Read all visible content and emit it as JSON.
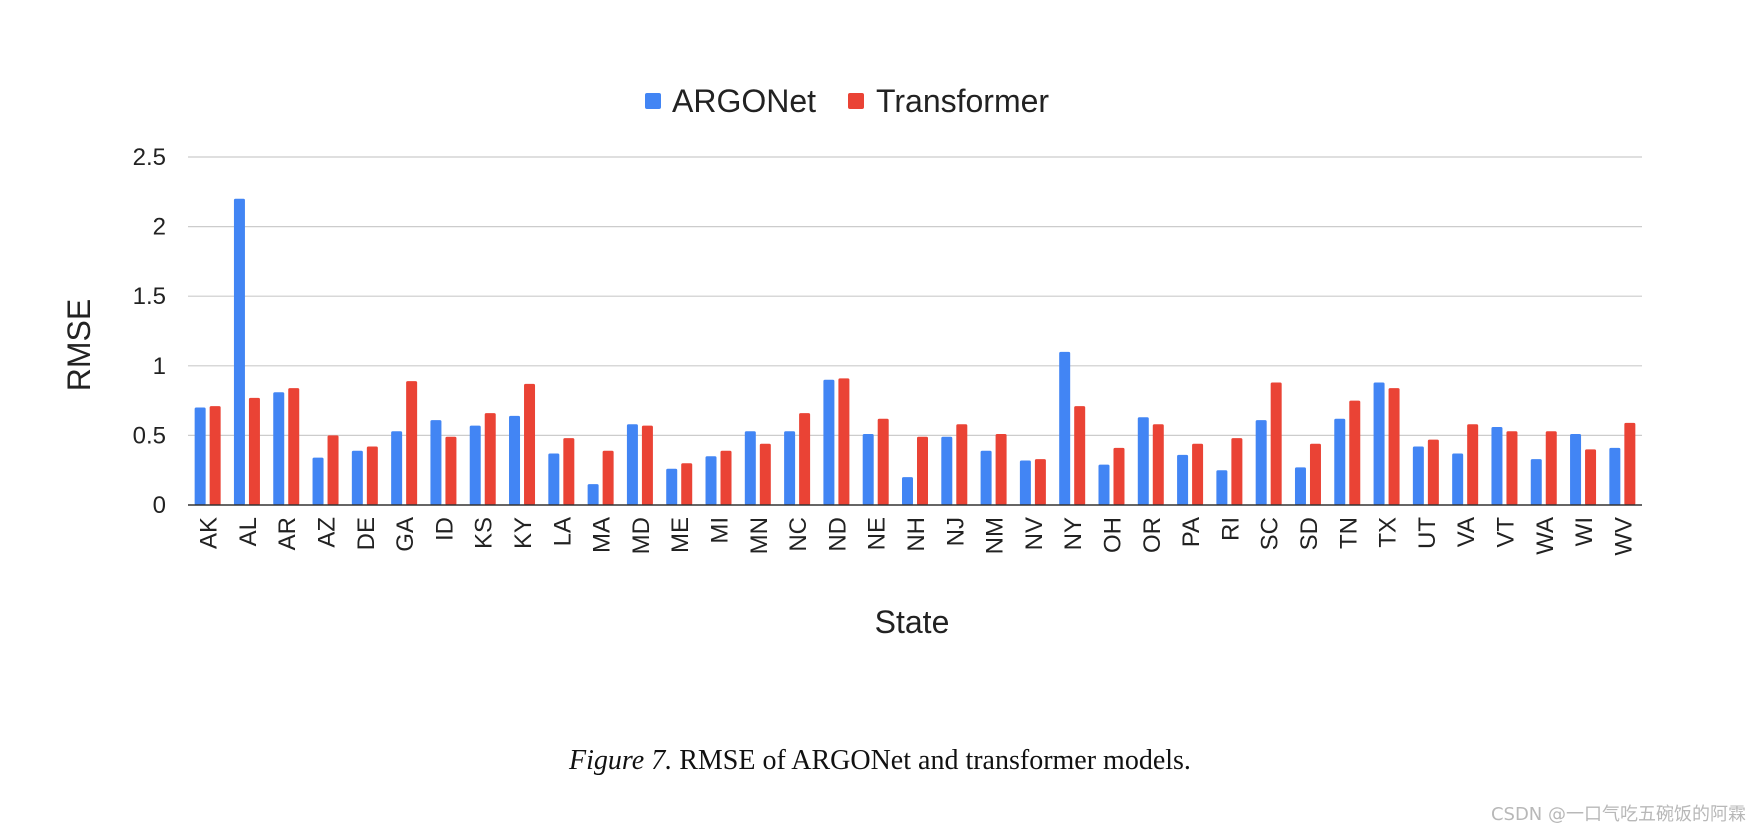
{
  "chart_data": {
    "type": "bar",
    "title": "",
    "xlabel": "State",
    "ylabel": "RMSE",
    "ylim": [
      0,
      2.5
    ],
    "yticks": [
      0,
      0.5,
      1,
      1.5,
      2,
      2.5
    ],
    "ytick_labels": [
      "0",
      "0.5",
      "1",
      "1.5",
      "2",
      "2.5"
    ],
    "grid": true,
    "legend_position": "top-center",
    "categories": [
      "AK",
      "AL",
      "AR",
      "AZ",
      "DE",
      "GA",
      "ID",
      "KS",
      "KY",
      "LA",
      "MA",
      "MD",
      "ME",
      "MI",
      "MN",
      "NC",
      "ND",
      "NE",
      "NH",
      "NJ",
      "NM",
      "NV",
      "NY",
      "OH",
      "OR",
      "PA",
      "RI",
      "SC",
      "SD",
      "TN",
      "TX",
      "UT",
      "VA",
      "VT",
      "WA",
      "WI",
      "WV"
    ],
    "series": [
      {
        "name": "ARGONet",
        "color": "#4285f4",
        "values": [
          0.7,
          2.2,
          0.81,
          0.34,
          0.39,
          0.53,
          0.61,
          0.57,
          0.64,
          0.37,
          0.15,
          0.58,
          0.26,
          0.35,
          0.53,
          0.53,
          0.9,
          0.51,
          0.2,
          0.49,
          0.39,
          0.32,
          1.1,
          0.29,
          0.63,
          0.36,
          0.25,
          0.61,
          0.27,
          0.62,
          0.88,
          0.42,
          0.37,
          0.56,
          0.33,
          0.51,
          0.41
        ]
      },
      {
        "name": "Transformer",
        "color": "#ea4335",
        "values": [
          0.71,
          0.77,
          0.84,
          0.5,
          0.42,
          0.89,
          0.49,
          0.66,
          0.87,
          0.48,
          0.39,
          0.57,
          0.3,
          0.39,
          0.44,
          0.66,
          0.91,
          0.62,
          0.49,
          0.58,
          0.51,
          0.33,
          0.71,
          0.41,
          0.58,
          0.44,
          0.48,
          0.88,
          0.44,
          0.75,
          0.84,
          0.47,
          0.58,
          0.53,
          0.53,
          0.4,
          0.59
        ]
      }
    ]
  },
  "caption": {
    "figure_label": "Figure 7.",
    "text": "RMSE of ARGONet and transformer models."
  },
  "watermark": "CSDN @一口气吃五碗饭的阿霖"
}
